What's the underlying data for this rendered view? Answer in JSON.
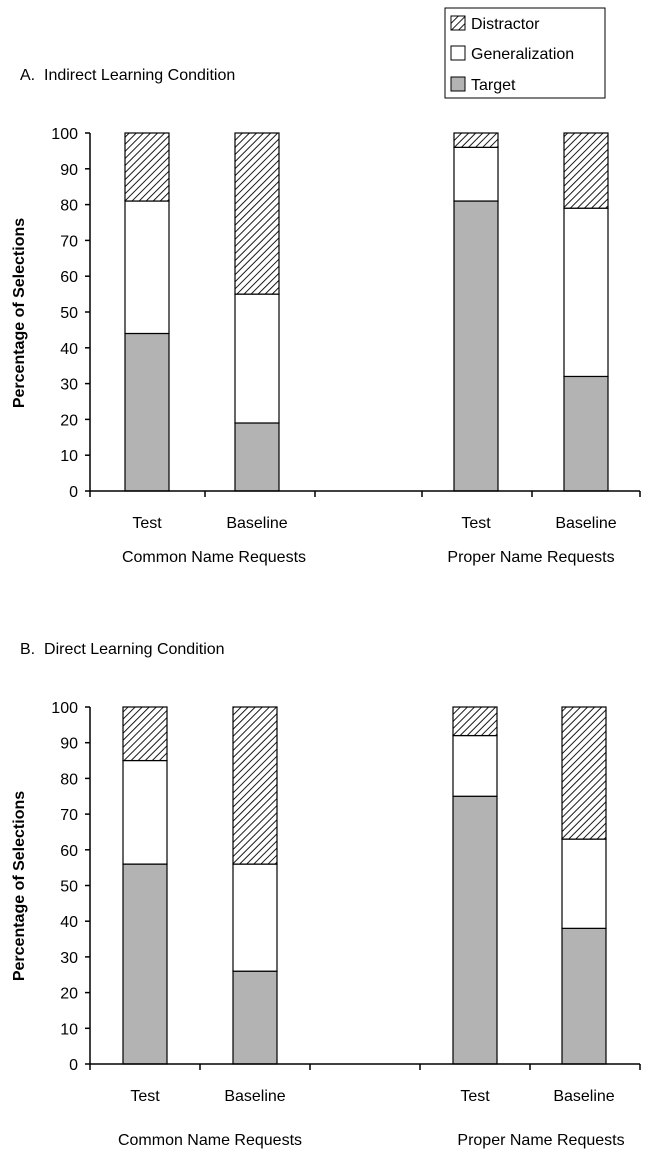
{
  "legend": {
    "items": [
      {
        "label": "Distractor",
        "fill": "hatch"
      },
      {
        "label": "Generalization",
        "fill": "#ffffff"
      },
      {
        "label": "Target",
        "fill": "#b3b3b3"
      }
    ]
  },
  "colors": {
    "target": "#b3b3b3",
    "generalization": "#ffffff",
    "distractor_hatch": "#000000",
    "axis": "#000000"
  },
  "chart_data": [
    {
      "type": "bar",
      "stacked": true,
      "title": "A.  Indirect Learning Condition",
      "ylabel": "Percentage of Selections",
      "ylim": [
        0,
        100
      ],
      "yticks": [
        0,
        10,
        20,
        30,
        40,
        50,
        60,
        70,
        80,
        90,
        100
      ],
      "categories": [
        "Test",
        "Baseline",
        "",
        "Test",
        "Baseline"
      ],
      "groups": [
        "Common Name Requests",
        "Proper Name Requests"
      ],
      "series": [
        {
          "name": "Target",
          "values": [
            44,
            19,
            null,
            81,
            32
          ]
        },
        {
          "name": "Generalization",
          "values": [
            37,
            36,
            null,
            15,
            47
          ]
        },
        {
          "name": "Distractor",
          "values": [
            19,
            45,
            null,
            4,
            21
          ]
        }
      ],
      "grid": false,
      "legend": "top-right"
    },
    {
      "type": "bar",
      "stacked": true,
      "title": "B.  Direct Learning Condition",
      "ylabel": "Percentage of Selections",
      "ylim": [
        0,
        100
      ],
      "yticks": [
        0,
        10,
        20,
        30,
        40,
        50,
        60,
        70,
        80,
        90,
        100
      ],
      "categories": [
        "Test",
        "Baseline",
        "",
        "Test",
        "Baseline"
      ],
      "groups": [
        "Common Name Requests",
        "Proper Name Requests"
      ],
      "series": [
        {
          "name": "Target",
          "values": [
            56,
            26,
            null,
            75,
            38
          ]
        },
        {
          "name": "Generalization",
          "values": [
            29,
            30,
            null,
            17,
            25
          ]
        },
        {
          "name": "Distractor",
          "values": [
            15,
            44,
            null,
            8,
            37
          ]
        }
      ],
      "grid": false,
      "legend": "none"
    }
  ]
}
